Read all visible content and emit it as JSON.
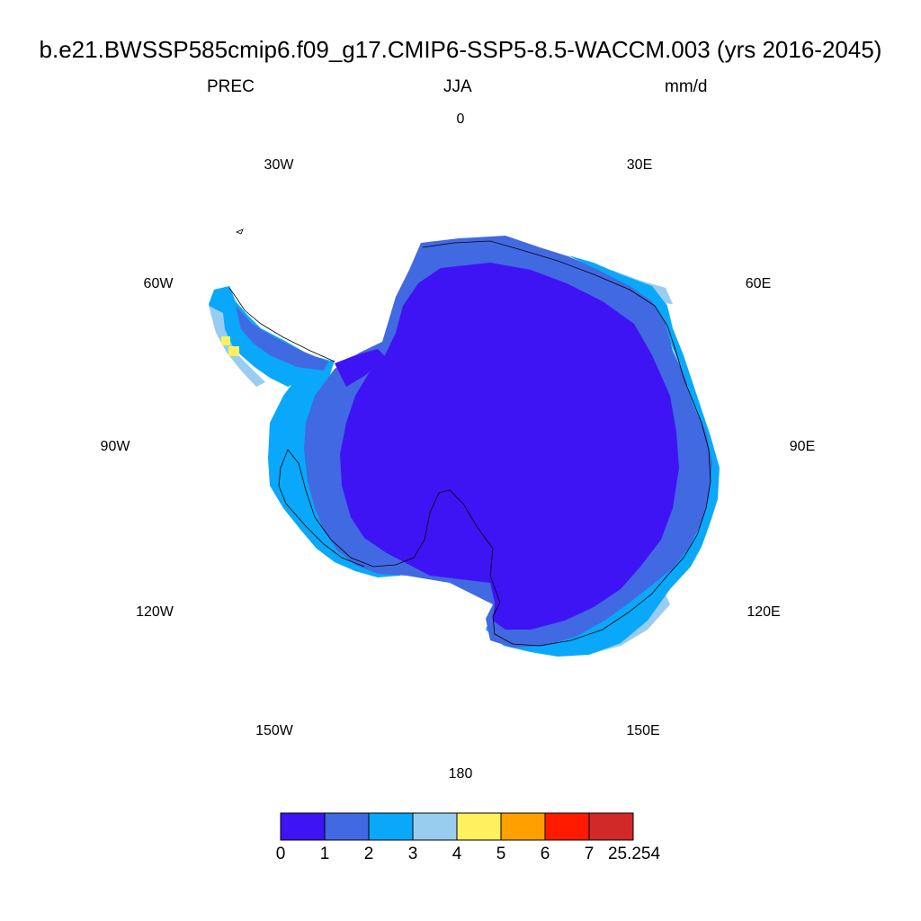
{
  "title": "b.e21.BWSSP585cmip6.f09_g17.CMIP6-SSP5-8.5-WACCM.003 (yrs 2016-2045)",
  "subtitle": {
    "left": "PREC",
    "center": "JJA",
    "right": "mm/d"
  },
  "longitude_labels": [
    "0",
    "30E",
    "60E",
    "90E",
    "120E",
    "150E",
    "180",
    "150W",
    "120W",
    "90W",
    "60W",
    "30W"
  ],
  "colorbar": {
    "colors": [
      "#3e14f5",
      "#4169e1",
      "#09a8fb",
      "#98cdef",
      "#fff060",
      "#ffa000",
      "#ff1a00",
      "#d32828"
    ],
    "labels": [
      "0",
      "1",
      "2",
      "3",
      "4",
      "5",
      "6",
      "7",
      "25.254"
    ]
  },
  "map": {
    "projection": "south polar stereographic",
    "region": "Antarctica",
    "interior_bin_color": "#3e14f5",
    "coastal_bin_colors": [
      "#4169e1",
      "#09a8fb",
      "#98cdef"
    ],
    "peninsula_max_bin_color": "#fff060"
  }
}
